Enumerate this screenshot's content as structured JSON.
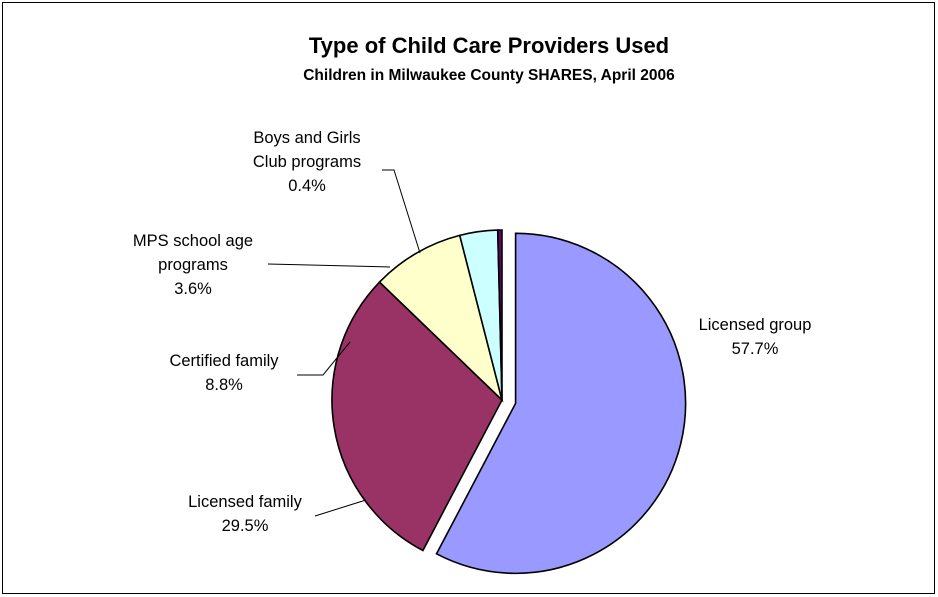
{
  "chart_data": {
    "type": "pie",
    "title": "Type of Child Care Providers Used",
    "subtitle": "Children in Milwaukee County SHARES, April 2006",
    "slices": [
      {
        "lines": [
          "Licensed group"
        ],
        "label": "Licensed group",
        "value": 57.7,
        "value_label": "57.7%",
        "color": "#9999FF",
        "exploded": true
      },
      {
        "lines": [
          "Licensed family"
        ],
        "label": "Licensed family",
        "value": 29.5,
        "value_label": "29.5%",
        "color": "#993366",
        "exploded": false
      },
      {
        "lines": [
          "Certified family"
        ],
        "label": "Certified family",
        "value": 8.8,
        "value_label": "8.8%",
        "color": "#FFFFCC",
        "exploded": false
      },
      {
        "lines": [
          "MPS school age",
          "programs"
        ],
        "label": "MPS school age programs",
        "value": 3.6,
        "value_label": "3.6%",
        "color": "#CCFFFF",
        "exploded": false
      },
      {
        "lines": [
          "Boys and Girls",
          "Club programs"
        ],
        "label": "Boys and Girls Club programs",
        "value": 0.4,
        "value_label": "0.4%",
        "color": "#660066",
        "exploded": false
      }
    ]
  }
}
